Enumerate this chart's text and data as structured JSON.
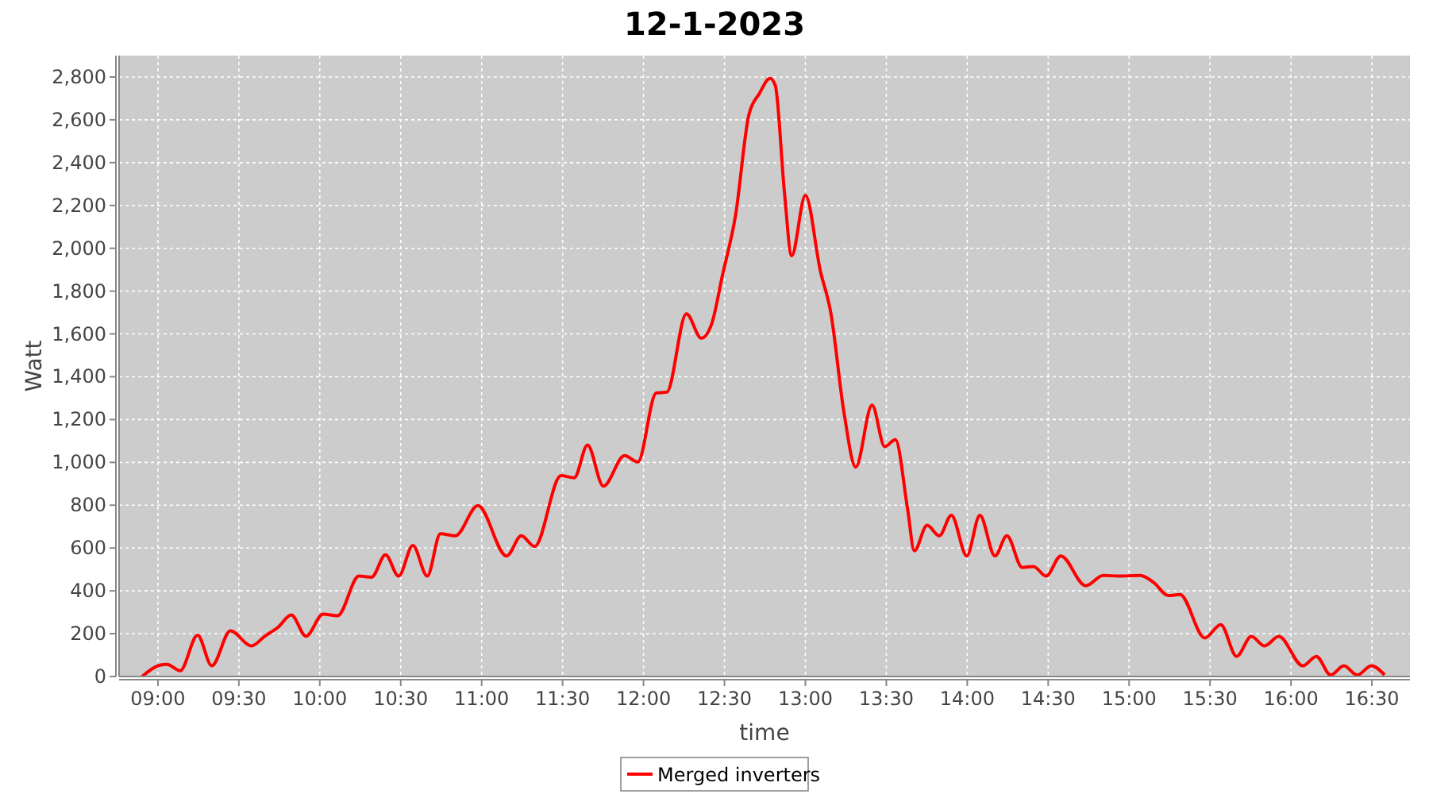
{
  "chart_data": {
    "type": "line",
    "title": "12-1-2023",
    "xlabel": "time",
    "ylabel": "Watt",
    "xlim": [
      8.76,
      16.735
    ],
    "ylim": [
      0,
      2900
    ],
    "xticks": [
      {
        "value": 9,
        "label": "09:00"
      },
      {
        "value": 9.5,
        "label": "09:30"
      },
      {
        "value": 10,
        "label": "10:00"
      },
      {
        "value": 10.5,
        "label": "10:30"
      },
      {
        "value": 11,
        "label": "11:00"
      },
      {
        "value": 11.5,
        "label": "11:30"
      },
      {
        "value": 12,
        "label": "12:00"
      },
      {
        "value": 12.5,
        "label": "12:30"
      },
      {
        "value": 13,
        "label": "13:00"
      },
      {
        "value": 13.5,
        "label": "13:30"
      },
      {
        "value": 14,
        "label": "14:00"
      },
      {
        "value": 14.5,
        "label": "14:30"
      },
      {
        "value": 15,
        "label": "15:00"
      },
      {
        "value": 15.5,
        "label": "15:30"
      },
      {
        "value": 16,
        "label": "16:00"
      },
      {
        "value": 16.5,
        "label": "16:30"
      }
    ],
    "yticks": [
      0,
      200,
      400,
      600,
      800,
      {
        "value": 1000,
        "label": "1,000"
      },
      {
        "value": 1200,
        "label": "1,200"
      },
      {
        "value": 1400,
        "label": "1,400"
      },
      {
        "value": 1600,
        "label": "1,600"
      },
      {
        "value": 1800,
        "label": "1,800"
      },
      {
        "value": 2000,
        "label": "2,000"
      },
      {
        "value": 2200,
        "label": "2,200"
      },
      {
        "value": 2400,
        "label": "2,400"
      },
      {
        "value": 2600,
        "label": "2,600"
      },
      {
        "value": 2800,
        "label": "2,800"
      }
    ],
    "grid": true,
    "legend": "bottom",
    "marker": "none",
    "line_style": "solid",
    "x": [
      8.902,
      9.007,
      9.056,
      9.137,
      9.245,
      9.333,
      9.448,
      9.578,
      9.66,
      9.742,
      9.824,
      9.915,
      10.02,
      10.11,
      10.242,
      10.32,
      10.406,
      10.487,
      10.575,
      10.664,
      10.745,
      10.837,
      10.977,
      11.154,
      11.245,
      11.327,
      11.49,
      11.572,
      11.654,
      11.752,
      11.883,
      11.965,
      12.078,
      12.144,
      12.265,
      12.357,
      12.422,
      12.487,
      12.569,
      12.651,
      12.716,
      12.781,
      12.814,
      12.87,
      12.915,
      13.0,
      13.092,
      13.157,
      13.239,
      13.311,
      13.412,
      13.49,
      13.556,
      13.631,
      13.673,
      13.752,
      13.827,
      13.902,
      13.997,
      14.078,
      14.171,
      14.245,
      14.34,
      14.409,
      14.487,
      14.578,
      14.732,
      14.84,
      14.938,
      15.069,
      15.152,
      15.242,
      15.314,
      15.468,
      15.566,
      15.664,
      15.755,
      15.837,
      15.925,
      16.073,
      16.157,
      16.245,
      16.327,
      16.409,
      16.497,
      16.578
    ],
    "series": [
      {
        "name": "Merged inverters",
        "color": "#ff0000",
        "values": [
          0,
          52,
          57,
          27,
          193,
          50,
          213,
          143,
          188,
          230,
          287,
          188,
          291,
          284,
          469,
          464,
          568,
          469,
          612,
          469,
          667,
          657,
          798,
          563,
          657,
          607,
          938,
          928,
          1081,
          889,
          1032,
          1002,
          1324,
          1328,
          1694,
          1580,
          1649,
          1872,
          2156,
          2624,
          2723,
          2793,
          2761,
          2267,
          1965,
          2247,
          1896,
          1699,
          1230,
          978,
          1267,
          1074,
          1106,
          785,
          587,
          706,
          657,
          753,
          563,
          753,
          563,
          657,
          509,
          514,
          469,
          563,
          424,
          472,
          469,
          472,
          439,
          378,
          383,
          180,
          242,
          94,
          187,
          143,
          187,
          50,
          94,
          7,
          50,
          7,
          50,
          7
        ]
      }
    ]
  }
}
